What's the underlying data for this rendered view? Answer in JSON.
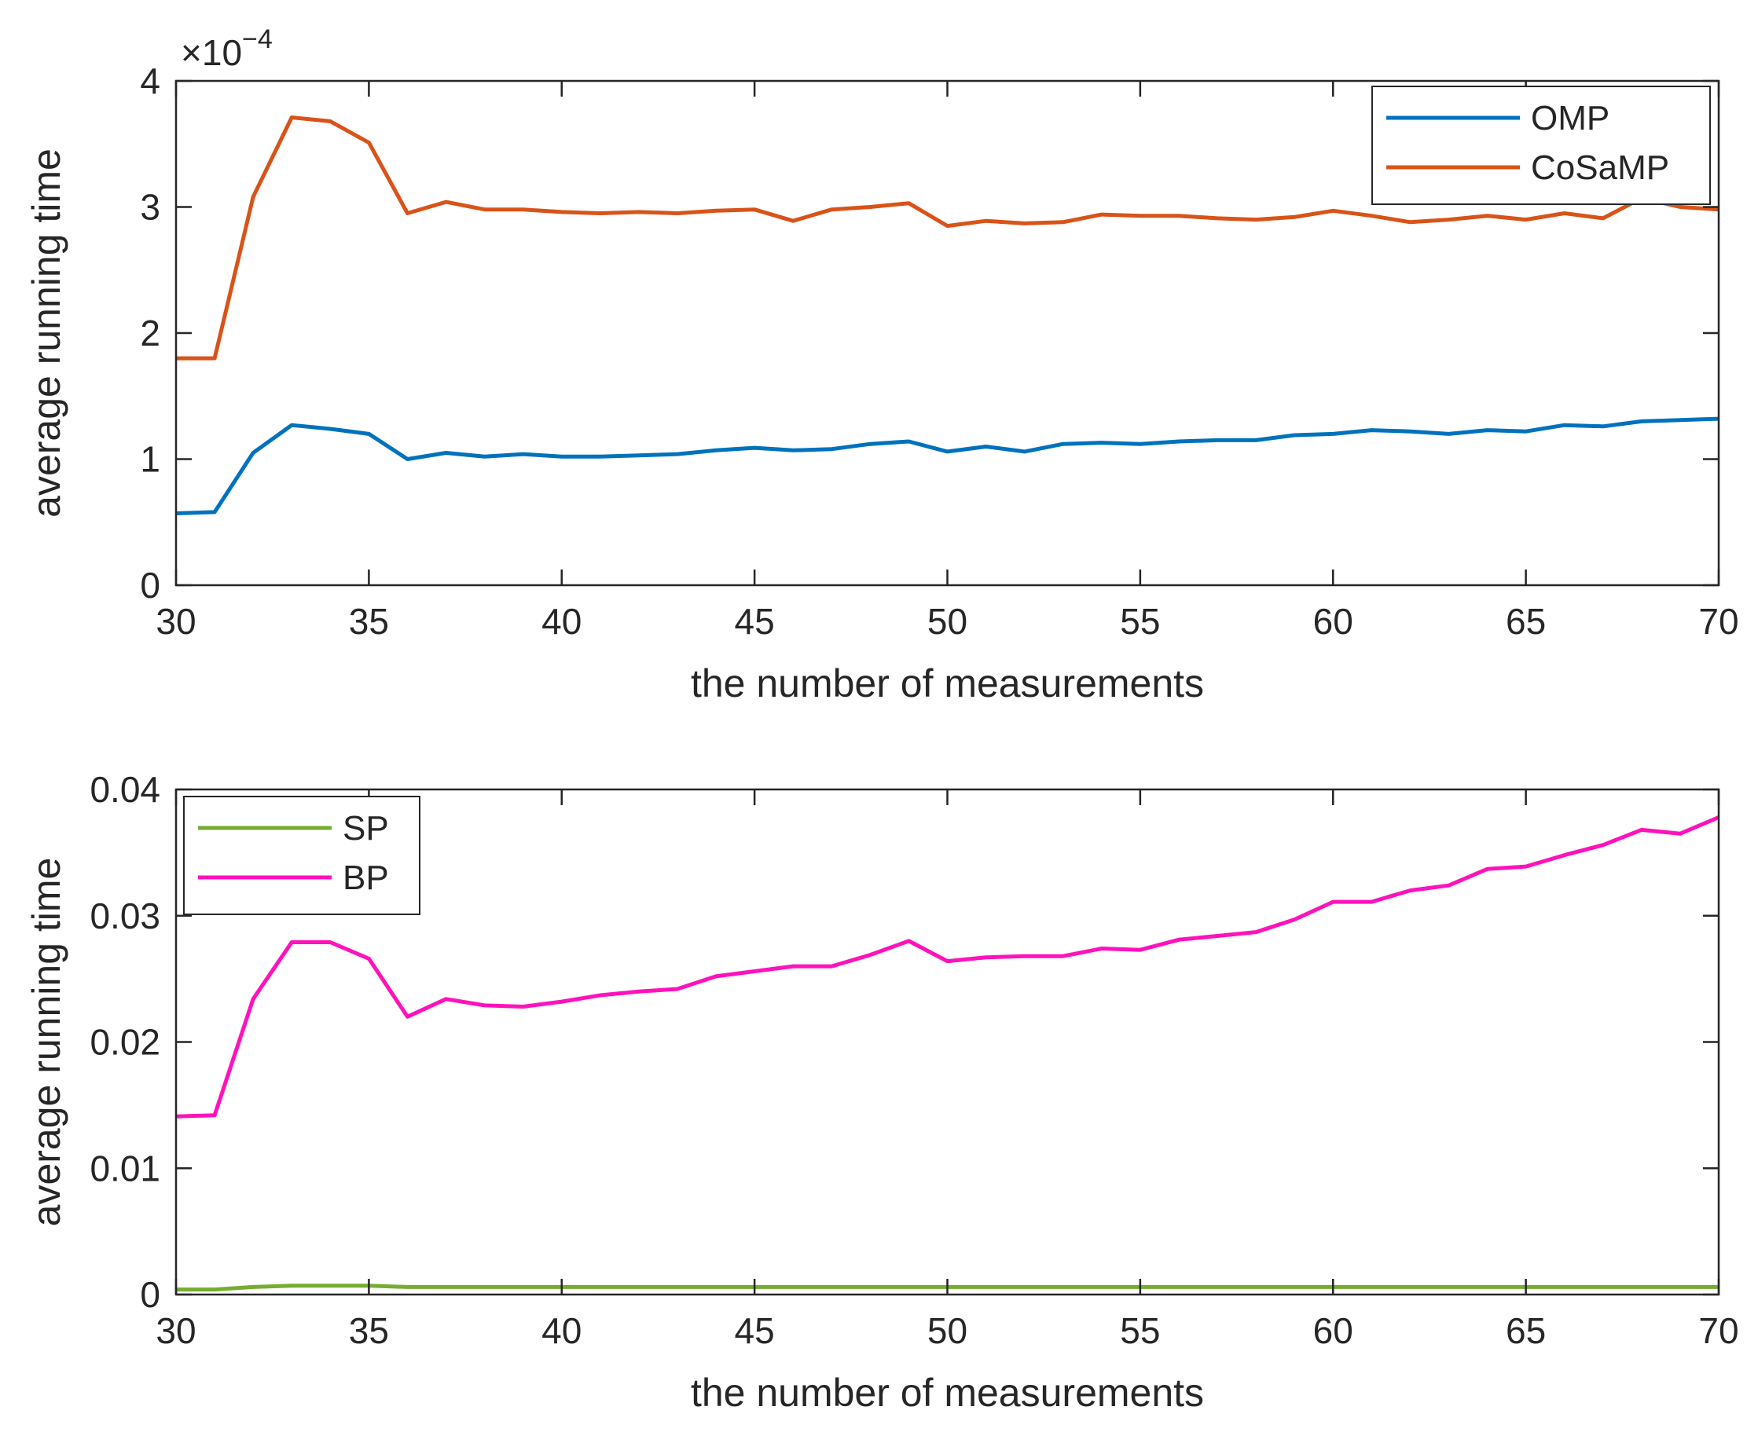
{
  "chart_data": [
    {
      "type": "line",
      "xlabel": "the number of measurements",
      "ylabel": "average running time",
      "xlim": [
        30,
        70
      ],
      "ylim": [
        0,
        4
      ],
      "y_scale_multiplier": "×10",
      "y_scale_exponent": "−4",
      "xticks": [
        "30",
        "35",
        "40",
        "45",
        "50",
        "55",
        "60",
        "65",
        "70"
      ],
      "yticks": [
        "0",
        "1",
        "2",
        "3",
        "4"
      ],
      "grid": false,
      "legend_position": "top-right",
      "x": [
        30,
        31,
        32,
        33,
        34,
        35,
        36,
        37,
        38,
        39,
        40,
        41,
        42,
        43,
        44,
        45,
        46,
        47,
        48,
        49,
        50,
        51,
        52,
        53,
        54,
        55,
        56,
        57,
        58,
        59,
        60,
        61,
        62,
        63,
        64,
        65,
        66,
        67,
        68,
        69,
        70
      ],
      "series": [
        {
          "name": "OMP",
          "color": "#0072BD",
          "values": [
            0.57,
            0.58,
            1.05,
            1.27,
            1.24,
            1.2,
            1.0,
            1.05,
            1.02,
            1.04,
            1.02,
            1.02,
            1.03,
            1.04,
            1.07,
            1.09,
            1.07,
            1.08,
            1.12,
            1.14,
            1.06,
            1.1,
            1.06,
            1.12,
            1.13,
            1.12,
            1.14,
            1.15,
            1.15,
            1.19,
            1.2,
            1.23,
            1.22,
            1.2,
            1.23,
            1.22,
            1.27,
            1.26,
            1.3,
            1.31,
            1.32
          ]
        },
        {
          "name": "CoSaMP",
          "color": "#D95319",
          "values": [
            1.8,
            1.8,
            3.08,
            3.71,
            3.68,
            3.51,
            2.95,
            3.04,
            2.98,
            2.98,
            2.96,
            2.95,
            2.96,
            2.95,
            2.97,
            2.98,
            2.89,
            2.98,
            3.0,
            3.03,
            2.85,
            2.89,
            2.87,
            2.88,
            2.94,
            2.93,
            2.93,
            2.91,
            2.9,
            2.92,
            2.97,
            2.93,
            2.88,
            2.9,
            2.93,
            2.9,
            2.95,
            2.91,
            3.07,
            3.0,
            2.98
          ]
        }
      ]
    },
    {
      "type": "line",
      "xlabel": "the number of measurements",
      "ylabel": "average running time",
      "xlim": [
        30,
        70
      ],
      "ylim": [
        0,
        0.04
      ],
      "xticks": [
        "30",
        "35",
        "40",
        "45",
        "50",
        "55",
        "60",
        "65",
        "70"
      ],
      "yticks": [
        "0",
        "0.01",
        "0.02",
        "0.03",
        "0.04"
      ],
      "grid": false,
      "legend_position": "top-left",
      "x": [
        30,
        31,
        32,
        33,
        34,
        35,
        36,
        37,
        38,
        39,
        40,
        41,
        42,
        43,
        44,
        45,
        46,
        47,
        48,
        49,
        50,
        51,
        52,
        53,
        54,
        55,
        56,
        57,
        58,
        59,
        60,
        61,
        62,
        63,
        64,
        65,
        66,
        67,
        68,
        69,
        70
      ],
      "series": [
        {
          "name": "SP",
          "color": "#77AC30",
          "values": [
            0.0004,
            0.0004,
            0.0006,
            0.0007,
            0.0007,
            0.0007,
            0.0006,
            0.0006,
            0.0006,
            0.0006,
            0.0006,
            0.0006,
            0.0006,
            0.0006,
            0.0006,
            0.0006,
            0.0006,
            0.0006,
            0.0006,
            0.0006,
            0.0006,
            0.0006,
            0.0006,
            0.0006,
            0.0006,
            0.0006,
            0.0006,
            0.0006,
            0.0006,
            0.0006,
            0.0006,
            0.0006,
            0.0006,
            0.0006,
            0.0006,
            0.0006,
            0.0006,
            0.0006,
            0.0006,
            0.0006,
            0.0006
          ]
        },
        {
          "name": "BP",
          "color": "#FF12BC",
          "values": [
            0.0141,
            0.0142,
            0.0234,
            0.0279,
            0.0279,
            0.0266,
            0.022,
            0.0234,
            0.0229,
            0.0228,
            0.0232,
            0.0237,
            0.024,
            0.0242,
            0.0252,
            0.0256,
            0.026,
            0.026,
            0.0269,
            0.028,
            0.0264,
            0.0267,
            0.0268,
            0.0268,
            0.0274,
            0.0273,
            0.0281,
            0.0284,
            0.0287,
            0.0297,
            0.0311,
            0.0311,
            0.032,
            0.0324,
            0.0337,
            0.0339,
            0.0348,
            0.0356,
            0.0368,
            0.0365,
            0.0378
          ]
        }
      ]
    }
  ]
}
